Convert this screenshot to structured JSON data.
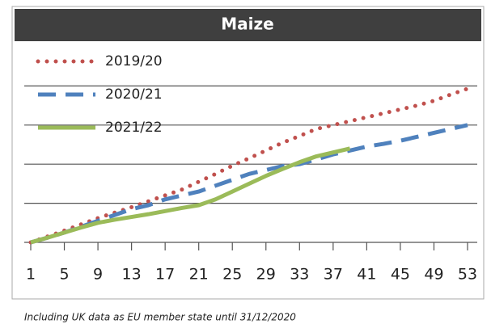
{
  "chart_data": {
    "type": "line",
    "title": "Maize",
    "x": [
      1,
      3,
      5,
      7,
      9,
      11,
      13,
      15,
      17,
      19,
      21,
      23,
      25,
      27,
      29,
      31,
      33,
      35,
      37,
      39,
      41,
      43,
      45,
      47,
      49,
      51,
      53
    ],
    "series": [
      {
        "name": "2019/20",
        "color": "#c0504d",
        "style": "dotted",
        "values": [
          0,
          0.15,
          0.3,
          0.46,
          0.62,
          0.76,
          0.9,
          1.05,
          1.2,
          1.35,
          1.55,
          1.75,
          1.96,
          2.15,
          2.35,
          2.55,
          2.72,
          2.9,
          3.0,
          3.1,
          3.2,
          3.3,
          3.4,
          3.5,
          3.62,
          3.78,
          3.93
        ]
      },
      {
        "name": "2020/21",
        "color": "#4f81bd",
        "style": "dashed",
        "values": [
          0,
          0.12,
          0.25,
          0.4,
          0.55,
          0.7,
          0.85,
          0.95,
          1.1,
          1.2,
          1.3,
          1.45,
          1.6,
          1.75,
          1.85,
          1.95,
          2.0,
          2.12,
          2.25,
          2.35,
          2.45,
          2.52,
          2.6,
          2.7,
          2.8,
          2.9,
          3.0
        ]
      },
      {
        "name": "2021/22",
        "color": "#9bbb59",
        "style": "solid",
        "values": [
          0,
          0.12,
          0.25,
          0.38,
          0.5,
          0.58,
          0.65,
          0.72,
          0.8,
          0.88,
          0.95,
          1.1,
          1.3,
          1.5,
          1.7,
          1.88,
          2.05,
          2.2,
          2.3,
          2.4,
          null,
          null,
          null,
          null,
          null,
          null,
          null
        ]
      }
    ],
    "xlim": [
      1,
      53
    ],
    "xticks": [
      1,
      5,
      9,
      13,
      17,
      21,
      25,
      29,
      33,
      37,
      41,
      45,
      49,
      53
    ],
    "ylim": [
      0,
      5
    ],
    "yticks": [
      1,
      2,
      3,
      4
    ],
    "grid": true,
    "legend": "upper left",
    "footnote": "Including UK data as EU member state until 31/12/2020"
  }
}
